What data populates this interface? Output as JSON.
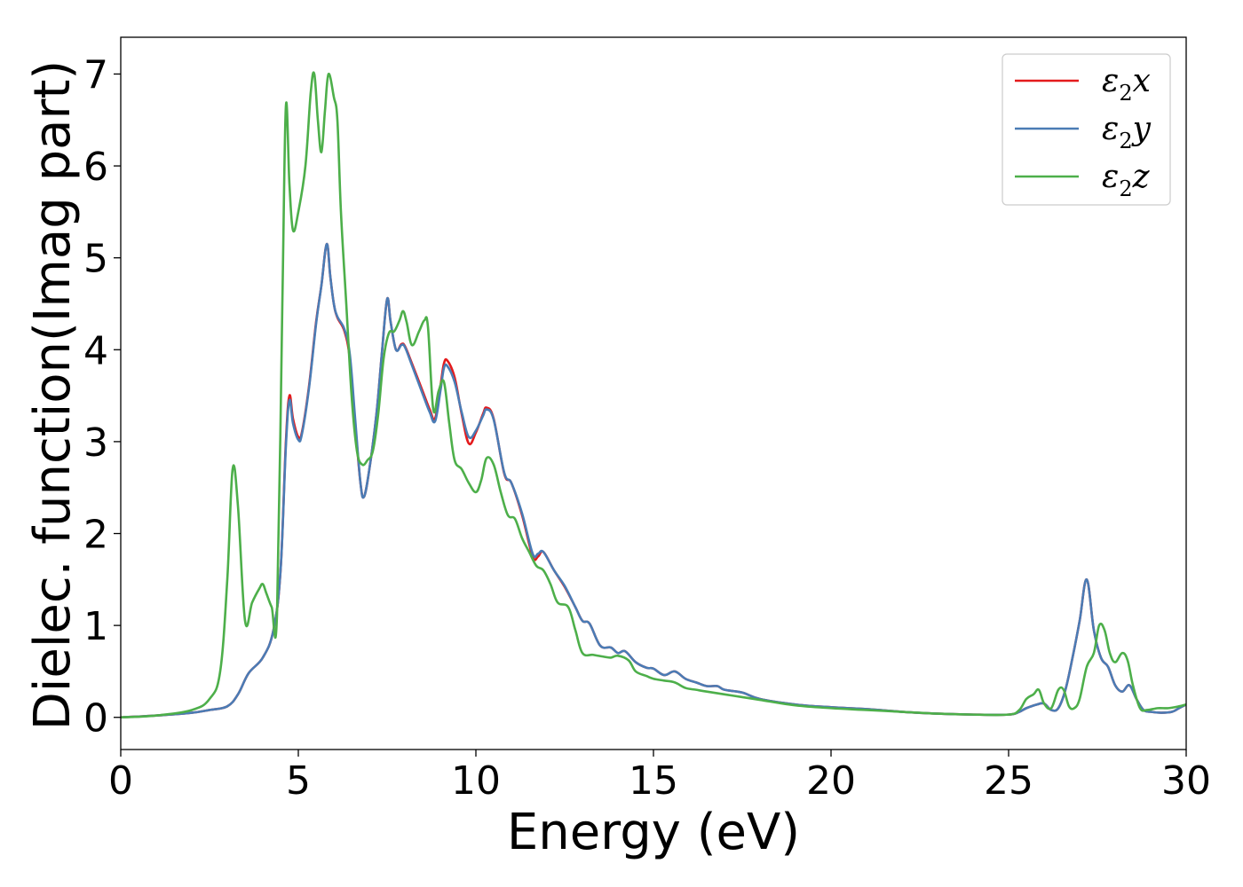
{
  "chart_data": {
    "type": "line",
    "title": "",
    "xlabel": "Energy (eV)",
    "ylabel": "Dielec. function(Imag part)",
    "xlim": [
      0,
      30
    ],
    "ylim": [
      -0.35,
      7.4
    ],
    "xticks": [
      0,
      5,
      10,
      15,
      20,
      25,
      30
    ],
    "yticks": [
      0,
      1,
      2,
      3,
      4,
      5,
      6,
      7
    ],
    "grid": false,
    "legend_position": "top-right",
    "series": [
      {
        "name": "ε2x",
        "legend": {
          "base": "ε",
          "sub": "2",
          "tail": "x"
        },
        "color": "#e41a1c",
        "x": [
          0,
          1,
          2,
          2.5,
          3,
          3.3,
          3.6,
          4.0,
          4.3,
          4.5,
          4.65,
          4.75,
          4.85,
          5.0,
          5.1,
          5.3,
          5.5,
          5.65,
          5.8,
          5.9,
          6.0,
          6.1,
          6.3,
          6.45,
          6.6,
          6.75,
          6.85,
          7.0,
          7.2,
          7.35,
          7.5,
          7.6,
          7.75,
          7.9,
          8.0,
          8.2,
          8.5,
          8.7,
          8.85,
          9.0,
          9.1,
          9.2,
          9.4,
          9.6,
          9.8,
          10.0,
          10.2,
          10.3,
          10.5,
          10.8,
          11.0,
          11.3,
          11.6,
          11.75,
          11.9,
          12.2,
          12.5,
          12.8,
          13.0,
          13.2,
          13.5,
          13.8,
          14.0,
          14.2,
          14.5,
          14.8,
          15.0,
          15.3,
          15.6,
          15.9,
          16.2,
          16.5,
          16.8,
          17.0,
          17.5,
          18.0,
          19.0,
          20.0,
          21.0,
          22.0,
          23.0,
          24.0,
          25.0,
          25.3,
          25.5,
          25.8,
          26.0,
          26.2,
          26.4,
          26.6,
          26.8,
          27.0,
          27.2,
          27.4,
          27.6,
          27.8,
          28.0,
          28.2,
          28.4,
          28.6,
          28.8,
          29.0,
          29.3,
          29.6,
          29.8,
          30.0
        ],
        "values": [
          0.0,
          0.02,
          0.05,
          0.08,
          0.12,
          0.25,
          0.48,
          0.65,
          0.95,
          1.6,
          3.0,
          3.5,
          3.25,
          3.05,
          3.1,
          3.6,
          4.3,
          4.7,
          5.15,
          4.8,
          4.5,
          4.35,
          4.2,
          3.9,
          3.2,
          2.55,
          2.4,
          2.7,
          3.3,
          3.95,
          4.55,
          4.3,
          4.0,
          4.06,
          4.04,
          3.85,
          3.55,
          3.35,
          3.25,
          3.6,
          3.85,
          3.88,
          3.7,
          3.3,
          2.98,
          3.1,
          3.3,
          3.37,
          3.25,
          2.65,
          2.55,
          2.2,
          1.75,
          1.75,
          1.8,
          1.6,
          1.42,
          1.2,
          1.05,
          1.02,
          0.78,
          0.76,
          0.7,
          0.72,
          0.6,
          0.54,
          0.53,
          0.46,
          0.5,
          0.42,
          0.38,
          0.34,
          0.34,
          0.3,
          0.27,
          0.2,
          0.14,
          0.11,
          0.09,
          0.06,
          0.04,
          0.03,
          0.03,
          0.06,
          0.1,
          0.14,
          0.15,
          0.08,
          0.1,
          0.3,
          0.65,
          1.05,
          1.5,
          0.95,
          0.65,
          0.55,
          0.35,
          0.28,
          0.35,
          0.2,
          0.08,
          0.06,
          0.05,
          0.06,
          0.1,
          0.14
        ]
      },
      {
        "name": "ε2y",
        "legend": {
          "base": "ε",
          "sub": "2",
          "tail": "y"
        },
        "color": "#4a7cb5",
        "x": [
          0,
          1,
          2,
          2.5,
          3,
          3.3,
          3.6,
          4.0,
          4.3,
          4.5,
          4.65,
          4.75,
          4.85,
          5.0,
          5.1,
          5.3,
          5.5,
          5.65,
          5.8,
          5.9,
          6.0,
          6.1,
          6.3,
          6.45,
          6.6,
          6.75,
          6.85,
          7.0,
          7.2,
          7.35,
          7.5,
          7.6,
          7.75,
          7.9,
          8.0,
          8.2,
          8.5,
          8.7,
          8.85,
          9.0,
          9.1,
          9.2,
          9.4,
          9.6,
          9.8,
          10.0,
          10.2,
          10.3,
          10.5,
          10.8,
          11.0,
          11.3,
          11.6,
          11.75,
          11.9,
          12.2,
          12.5,
          12.8,
          13.0,
          13.2,
          13.5,
          13.8,
          14.0,
          14.2,
          14.5,
          14.8,
          15.0,
          15.3,
          15.6,
          15.9,
          16.2,
          16.5,
          16.8,
          17.0,
          17.5,
          18.0,
          19.0,
          20.0,
          21.0,
          22.0,
          23.0,
          24.0,
          25.0,
          25.3,
          25.5,
          25.8,
          26.0,
          26.2,
          26.4,
          26.6,
          26.8,
          27.0,
          27.2,
          27.4,
          27.6,
          27.8,
          28.0,
          28.2,
          28.4,
          28.6,
          28.8,
          29.0,
          29.3,
          29.6,
          29.8,
          30.0
        ],
        "values": [
          0.0,
          0.02,
          0.05,
          0.08,
          0.12,
          0.25,
          0.48,
          0.65,
          0.95,
          1.6,
          2.95,
          3.45,
          3.2,
          3.02,
          3.08,
          3.58,
          4.28,
          4.7,
          5.15,
          4.8,
          4.5,
          4.36,
          4.22,
          3.95,
          3.25,
          2.55,
          2.4,
          2.7,
          3.3,
          3.95,
          4.55,
          4.3,
          4.0,
          4.05,
          4.03,
          3.83,
          3.52,
          3.32,
          3.22,
          3.55,
          3.8,
          3.82,
          3.65,
          3.32,
          3.05,
          3.12,
          3.28,
          3.35,
          3.24,
          2.66,
          2.55,
          2.22,
          1.78,
          1.78,
          1.8,
          1.6,
          1.43,
          1.2,
          1.05,
          1.02,
          0.78,
          0.76,
          0.7,
          0.72,
          0.6,
          0.54,
          0.53,
          0.46,
          0.5,
          0.42,
          0.38,
          0.34,
          0.34,
          0.3,
          0.27,
          0.2,
          0.14,
          0.11,
          0.09,
          0.06,
          0.04,
          0.03,
          0.03,
          0.06,
          0.1,
          0.14,
          0.15,
          0.08,
          0.1,
          0.3,
          0.65,
          1.05,
          1.5,
          0.95,
          0.65,
          0.55,
          0.35,
          0.28,
          0.35,
          0.2,
          0.08,
          0.06,
          0.05,
          0.06,
          0.1,
          0.14
        ]
      },
      {
        "name": "ε2z",
        "legend": {
          "base": "ε",
          "sub": "2",
          "tail": "z"
        },
        "color": "#4daf4a",
        "x": [
          0,
          1,
          2,
          2.5,
          2.8,
          3.0,
          3.15,
          3.3,
          3.5,
          3.7,
          3.9,
          4.0,
          4.1,
          4.25,
          4.4,
          4.55,
          4.65,
          4.75,
          4.85,
          5.0,
          5.2,
          5.35,
          5.45,
          5.55,
          5.65,
          5.75,
          5.85,
          6.0,
          6.1,
          6.2,
          6.35,
          6.5,
          6.65,
          6.8,
          6.95,
          7.1,
          7.25,
          7.4,
          7.55,
          7.7,
          7.85,
          7.95,
          8.05,
          8.2,
          8.4,
          8.55,
          8.65,
          8.8,
          8.95,
          9.1,
          9.25,
          9.4,
          9.6,
          9.8,
          10.0,
          10.15,
          10.3,
          10.5,
          10.7,
          10.9,
          11.1,
          11.3,
          11.5,
          11.7,
          11.9,
          12.1,
          12.3,
          12.6,
          12.8,
          13.0,
          13.3,
          13.6,
          13.8,
          14.0,
          14.3,
          14.5,
          14.8,
          15.0,
          15.3,
          15.6,
          15.9,
          16.2,
          16.5,
          17.0,
          17.5,
          18.0,
          19.0,
          20.0,
          21.0,
          22.0,
          23.0,
          24.0,
          25.0,
          25.3,
          25.5,
          25.7,
          25.85,
          26.0,
          26.2,
          26.4,
          26.55,
          26.7,
          26.85,
          27.0,
          27.2,
          27.4,
          27.55,
          27.7,
          27.85,
          28.0,
          28.2,
          28.35,
          28.5,
          28.7,
          28.9,
          29.2,
          29.5,
          29.8,
          30.0
        ],
        "values": [
          0.0,
          0.02,
          0.08,
          0.2,
          0.5,
          1.5,
          2.7,
          2.3,
          1.05,
          1.25,
          1.4,
          1.45,
          1.35,
          1.2,
          1.12,
          4.5,
          6.65,
          5.8,
          5.3,
          5.5,
          6.0,
          6.8,
          7.0,
          6.5,
          6.15,
          6.6,
          7.0,
          6.75,
          6.5,
          5.5,
          4.5,
          3.5,
          2.9,
          2.75,
          2.8,
          2.9,
          3.3,
          3.9,
          4.18,
          4.2,
          4.32,
          4.42,
          4.3,
          4.05,
          4.2,
          4.32,
          4.25,
          3.35,
          3.55,
          3.65,
          3.2,
          2.8,
          2.7,
          2.55,
          2.45,
          2.58,
          2.82,
          2.75,
          2.45,
          2.2,
          2.16,
          1.95,
          1.8,
          1.65,
          1.6,
          1.45,
          1.25,
          1.2,
          0.95,
          0.7,
          0.68,
          0.66,
          0.65,
          0.67,
          0.62,
          0.5,
          0.45,
          0.42,
          0.4,
          0.38,
          0.32,
          0.3,
          0.28,
          0.25,
          0.22,
          0.19,
          0.13,
          0.1,
          0.08,
          0.06,
          0.04,
          0.03,
          0.03,
          0.08,
          0.2,
          0.25,
          0.3,
          0.15,
          0.1,
          0.3,
          0.3,
          0.12,
          0.1,
          0.2,
          0.55,
          0.7,
          1.0,
          0.95,
          0.7,
          0.6,
          0.7,
          0.62,
          0.35,
          0.1,
          0.08,
          0.1,
          0.1,
          0.12,
          0.14
        ]
      }
    ]
  }
}
